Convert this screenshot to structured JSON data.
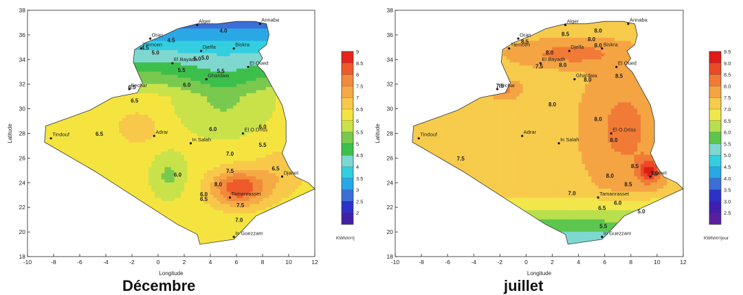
{
  "maps": [
    {
      "caption": "Décembre",
      "xlabel": "Longitude",
      "ylabel": "Latitude",
      "x_ticks": [
        "-10",
        "-8",
        "-6",
        "-4",
        "-2",
        "0",
        "2",
        "4",
        "6",
        "8",
        "10",
        "12"
      ],
      "y_ticks": [
        "18",
        "20",
        "22",
        "24",
        "26",
        "28",
        "30",
        "32",
        "34",
        "36",
        "38"
      ],
      "legend_unit": "KWh/m²/j",
      "legend_values": [
        "9",
        "8.5",
        "8",
        "7.5",
        "7",
        "6.5",
        "6",
        "5.5",
        "5",
        "4.5",
        "4",
        "3.5",
        "3",
        "2.5",
        "2"
      ],
      "legend_colors": [
        "#e8231c",
        "#ee5a2a",
        "#f28a3c",
        "#f5aa45",
        "#f7c84a",
        "#f5e43f",
        "#c9e24a",
        "#79c94e",
        "#3dbf4b",
        "#7fd8d0",
        "#33cfe0",
        "#2aa8e6",
        "#3c6fd6",
        "#2b31c9",
        "#4320a8"
      ],
      "cities": [
        "Alger",
        "Annaba",
        "Oran",
        "Tlemcen",
        "Djelfa",
        "Biskra",
        "El Bayadh",
        "El Oued",
        "Ghardaia",
        "Bechar",
        "Tindouf",
        "Adrar",
        "In Salah",
        "El O.Driss",
        "Djanet",
        "Tamanrasset",
        "In Guezzam"
      ],
      "contours": [
        "6.5",
        "6.5",
        "6.5",
        "6.0",
        "6.0",
        "6.0",
        "5.0",
        "5.5",
        "4.5",
        "5.0",
        "4.0",
        "4.5",
        "5.0",
        "5.5",
        "7.0",
        "7.5",
        "8.0",
        "6.5",
        "7.0",
        "7.5",
        "6.5",
        "6.0",
        "6.0",
        "5.5"
      ]
    },
    {
      "caption": "juillet",
      "xlabel": "Longitude",
      "ylabel": "Latitude",
      "x_ticks": [
        "-10",
        "-8",
        "-6",
        "-4",
        "-2",
        "0",
        "2",
        "4",
        "6",
        "8",
        "10",
        "12"
      ],
      "y_ticks": [
        "18",
        "20",
        "22",
        "24",
        "26",
        "28",
        "30",
        "32",
        "34",
        "36",
        "38"
      ],
      "legend_unit": "KWh/m²/jour",
      "legend_values": [
        "9.5",
        "9.0",
        "8.5",
        "8.0",
        "7.5",
        "7.0",
        "6.5",
        "6.0",
        "5.5",
        "5.0",
        "4.5",
        "4.0",
        "3.5",
        "3.0",
        "2.5"
      ],
      "legend_colors": [
        "#e01b16",
        "#eb4a27",
        "#f07a36",
        "#f5a443",
        "#f7cb4b",
        "#f2e74a",
        "#b8df4d",
        "#5cc64e",
        "#7fd8d0",
        "#33cfe0",
        "#2aa8e6",
        "#3c6fd6",
        "#2b31c9",
        "#3e1fb0",
        "#5a1fa0"
      ],
      "cities": [
        "Alger",
        "Annaba",
        "Oran",
        "Tlemcen",
        "Djelfa",
        "Biskra",
        "El Bayadh",
        "El Oued",
        "Ghardaia",
        "Bechar",
        "Tindouf",
        "Adrar",
        "In Salah",
        "El O.Driss",
        "Djanet",
        "Tamanrasset",
        "In Guezzam"
      ],
      "contours": [
        "8.0",
        "8.5",
        "8.0",
        "8.5",
        "8.0",
        "8.0",
        "8.0",
        "8.5",
        "7.5",
        "7.5",
        "8.0",
        "8.0",
        "8.0",
        "8.0",
        "8.5",
        "9.0",
        "8.5",
        "8.0",
        "7.5",
        "7.0",
        "6.5",
        "6.0",
        "5.5",
        "5.0"
      ]
    }
  ]
}
